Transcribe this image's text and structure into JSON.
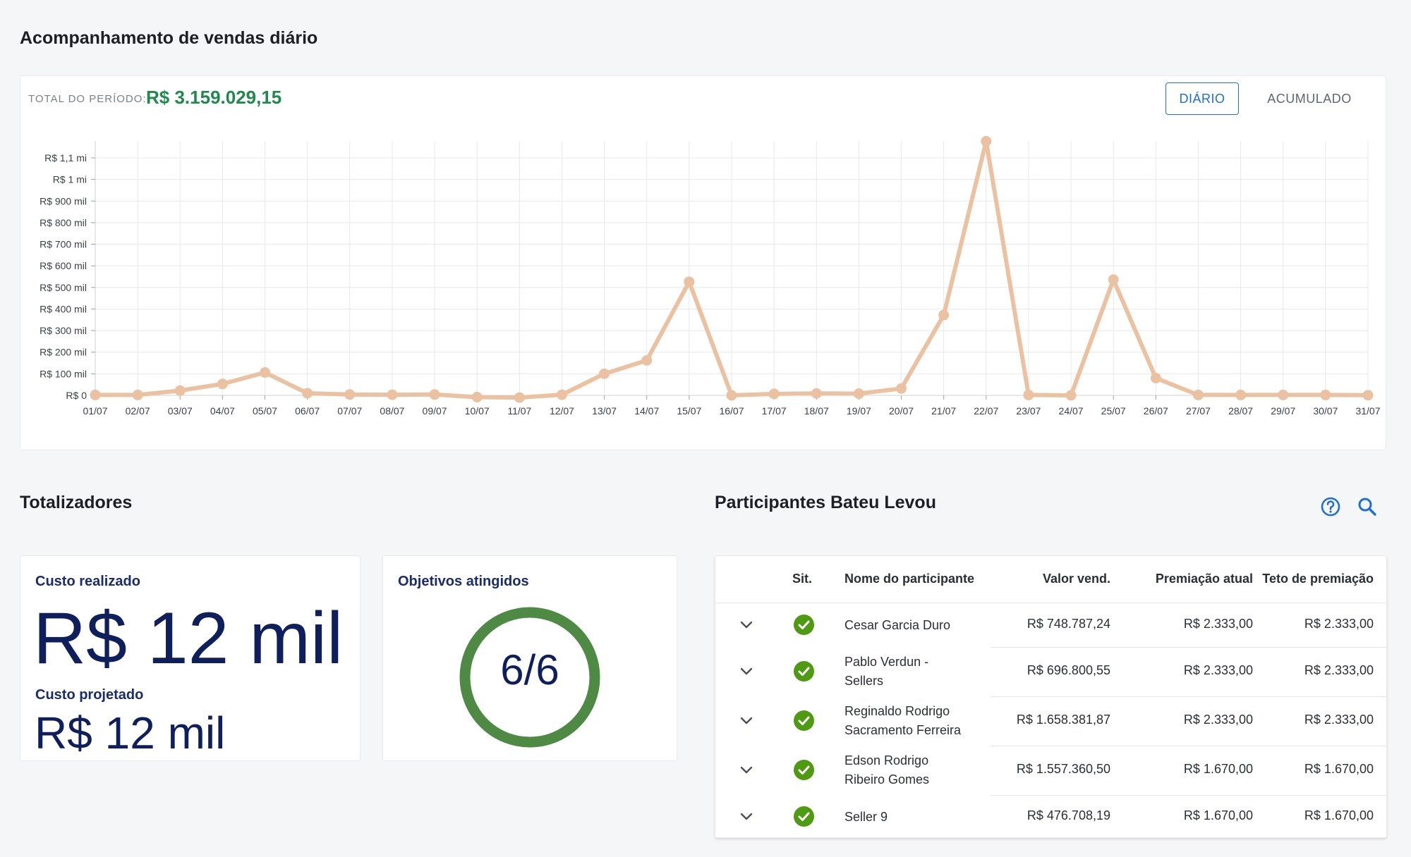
{
  "daily_section": {
    "title": "Acompanhamento de vendas diário",
    "total_label": "TOTAL DO PERÍODO:",
    "total_value": "R$ 3.159.029,15",
    "toggle": {
      "daily": "DIÁRIO",
      "accumulated": "ACUMULADO",
      "selected": "daily"
    }
  },
  "chart_data": {
    "type": "line",
    "title": "",
    "xlabel": "",
    "ylabel": "",
    "ylim": [
      0,
      1100000
    ],
    "y_ticks": [
      {
        "value": 0,
        "label": "R$ 0"
      },
      {
        "value": 100000,
        "label": "R$ 100 mil"
      },
      {
        "value": 200000,
        "label": "R$ 200 mil"
      },
      {
        "value": 300000,
        "label": "R$ 300 mil"
      },
      {
        "value": 400000,
        "label": "R$ 400 mil"
      },
      {
        "value": 500000,
        "label": "R$ 500 mil"
      },
      {
        "value": 600000,
        "label": "R$ 600 mil"
      },
      {
        "value": 700000,
        "label": "R$ 700 mil"
      },
      {
        "value": 800000,
        "label": "R$ 800 mil"
      },
      {
        "value": 900000,
        "label": "R$ 900 mil"
      },
      {
        "value": 1000000,
        "label": "R$ 1 mi"
      },
      {
        "value": 1100000,
        "label": "R$ 1,1 mi"
      }
    ],
    "grid": true,
    "line_color": "#ebc2a1",
    "categories": [
      "01/07",
      "02/07",
      "03/07",
      "04/07",
      "05/07",
      "06/07",
      "07/07",
      "08/07",
      "09/07",
      "10/07",
      "11/07",
      "12/07",
      "13/07",
      "14/07",
      "15/07",
      "16/07",
      "17/07",
      "18/07",
      "19/07",
      "20/07",
      "21/07",
      "22/07",
      "23/07",
      "24/07",
      "25/07",
      "26/07",
      "27/07",
      "28/07",
      "29/07",
      "30/07",
      "31/07"
    ],
    "values": [
      2000,
      2000,
      22000,
      53000,
      106000,
      10000,
      4000,
      3000,
      4000,
      -8000,
      -10000,
      3000,
      100000,
      162000,
      526000,
      0,
      7000,
      9000,
      8000,
      32000,
      372000,
      1177000,
      2000,
      0,
      536000,
      80000,
      2000,
      2000,
      2000,
      2000,
      1000
    ]
  },
  "totalizadores": {
    "title": "Totalizadores",
    "custo_realizado_label": "Custo realizado",
    "custo_realizado_value": "R$ 12 mil",
    "custo_projetado_label": "Custo projetado",
    "custo_projetado_value": "R$ 12 mil",
    "objetivos_label": "Objetivos atingidos",
    "objetivos_value": "6/6",
    "objetivos_fraction": 1.0,
    "ring_color": "#4f8a45"
  },
  "participants": {
    "title": "Participantes Bateu Levou",
    "columns": {
      "sit": "Sit.",
      "name": "Nome do participante",
      "sold": "Valor vend.",
      "prize": "Premiação atual",
      "cap": "Teto de premiação"
    },
    "rows": [
      {
        "name_line1": "Cesar Garcia Duro",
        "name_line2": "",
        "sold": "R$ 748.787,24",
        "prize": "R$ 2.333,00",
        "cap": "R$ 2.333,00"
      },
      {
        "name_line1": "Pablo Verdun -",
        "name_line2": "Sellers",
        "sold": "R$ 696.800,55",
        "prize": "R$ 2.333,00",
        "cap": "R$ 2.333,00"
      },
      {
        "name_line1": "Reginaldo Rodrigo",
        "name_line2": "Sacramento Ferreira",
        "sold": "R$ 1.658.381,87",
        "prize": "R$ 2.333,00",
        "cap": "R$ 2.333,00"
      },
      {
        "name_line1": "Edson Rodrigo",
        "name_line2": "Ribeiro Gomes",
        "sold": "R$ 1.557.360,50",
        "prize": "R$ 1.670,00",
        "cap": "R$ 1.670,00"
      },
      {
        "name_line1": "Seller 9",
        "name_line2": "",
        "sold": "R$ 476.708,19",
        "prize": "R$ 1.670,00",
        "cap": "R$ 1.670,00"
      }
    ],
    "status_icon": "check-circle-icon",
    "status_color": "#4e9a12",
    "accent_color": "#1d6fd6"
  }
}
